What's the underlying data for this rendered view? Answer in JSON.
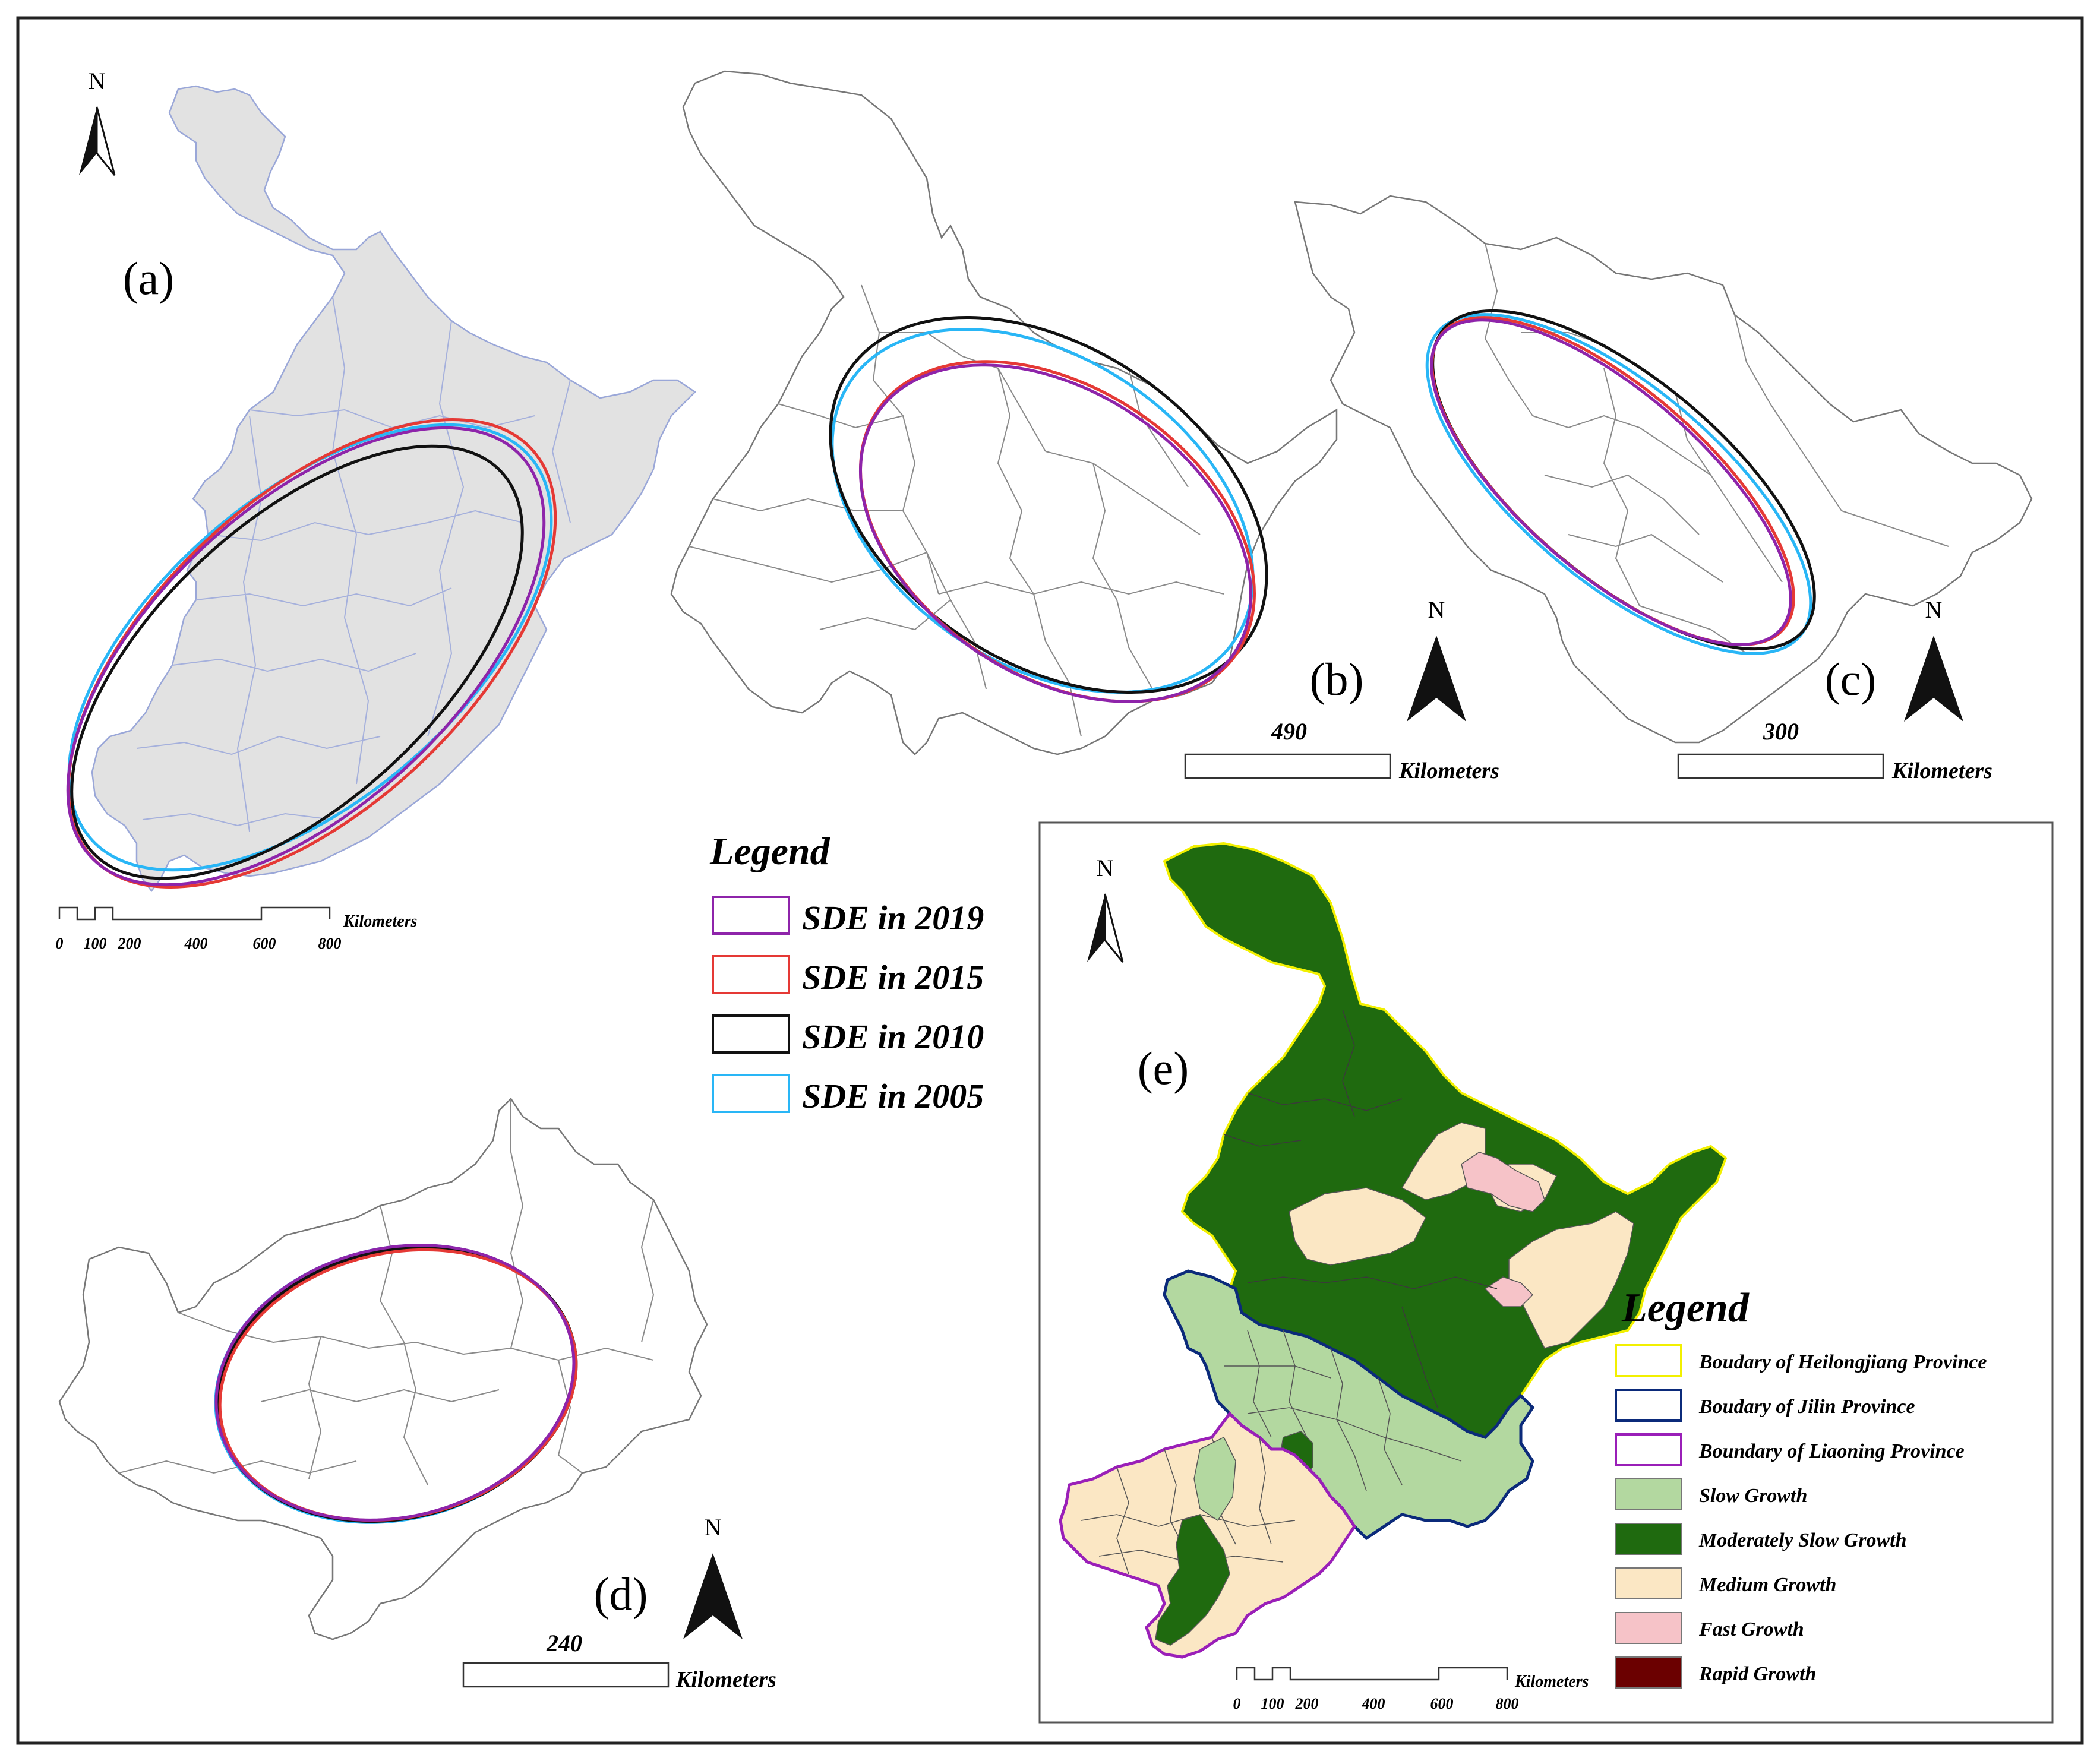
{
  "north_label": "N",
  "panels": {
    "a": {
      "label": "(a)"
    },
    "b": {
      "label": "(b)",
      "scale_value": "490",
      "scale_unit": "Kilometers"
    },
    "c": {
      "label": "(c)",
      "scale_value": "300",
      "scale_unit": "Kilometers"
    },
    "d": {
      "label": "(d)",
      "scale_value": "240",
      "scale_unit": "Kilometers"
    },
    "e": {
      "label": "(e)"
    }
  },
  "scalebar_checkered": {
    "unit": "Kilometers",
    "ticks": [
      "0",
      "100",
      "200",
      "400",
      "600",
      "800"
    ]
  },
  "sde_legend": {
    "title": "Legend",
    "items": [
      {
        "label": "SDE in 2019",
        "color": "#8e24aa"
      },
      {
        "label": "SDE in 2015",
        "color": "#e53935"
      },
      {
        "label": "SDE in 2010",
        "color": "#111111"
      },
      {
        "label": "SDE in 2005",
        "color": "#29b6f6"
      }
    ]
  },
  "growth_legend": {
    "title": "Legend",
    "items": [
      {
        "label": "Boudary of Heilongjiang Province",
        "fill": "#ffffff",
        "stroke": "#f2f000"
      },
      {
        "label": "Boudary of Jilin Province",
        "fill": "#ffffff",
        "stroke": "#0b2a7a"
      },
      {
        "label": "Boundary of Liaoning Province",
        "fill": "#ffffff",
        "stroke": "#9a1fb8"
      },
      {
        "label": "Slow Growth",
        "fill": "#b3d8a0",
        "stroke": "#777777"
      },
      {
        "label": "Moderately Slow Growth",
        "fill": "#1f6a0f",
        "stroke": "#777777"
      },
      {
        "label": "Medium Growth",
        "fill": "#fbe7c4",
        "stroke": "#777777"
      },
      {
        "label": "Fast Growth",
        "fill": "#f6c3c8",
        "stroke": "#777777"
      },
      {
        "label": "Rapid Growth",
        "fill": "#6b0000",
        "stroke": "#777777"
      }
    ]
  }
}
